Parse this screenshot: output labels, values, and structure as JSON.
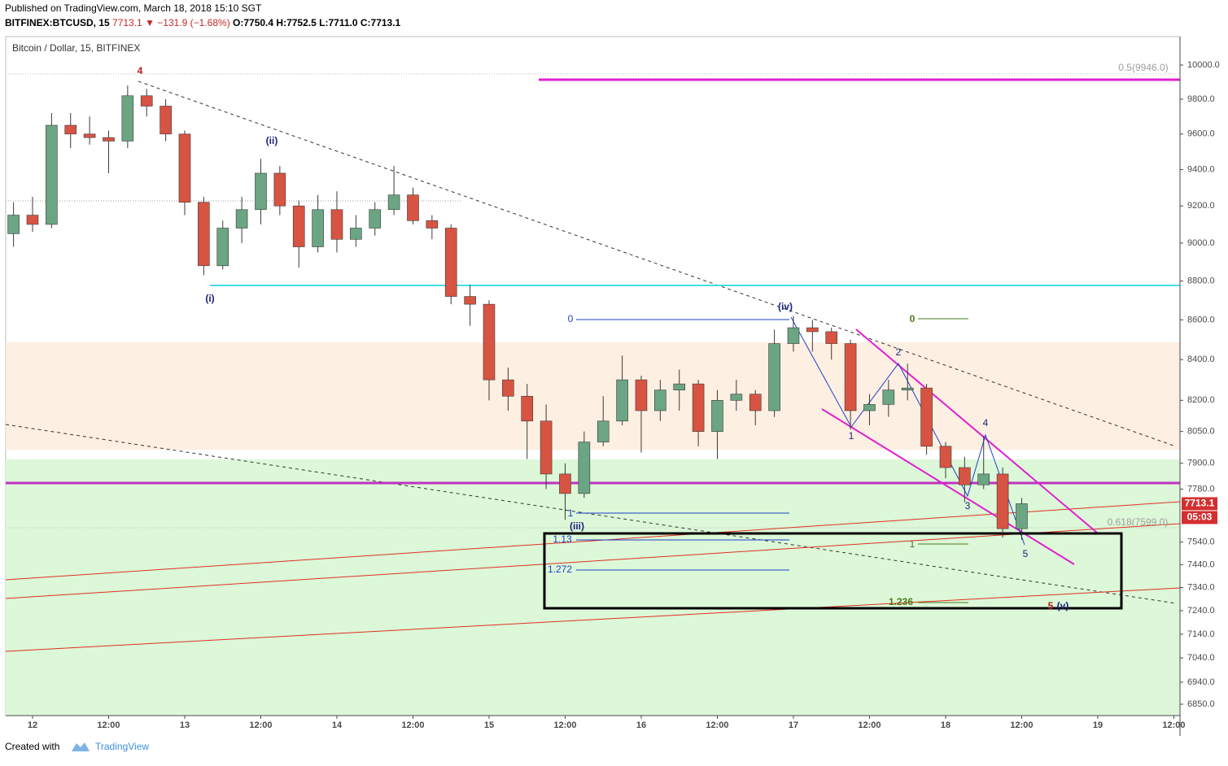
{
  "header": {
    "published": "Published on TradingView.com, March 18, 2018 15:10 SGT",
    "symbol": "BITFINEX:BTCUSD, 15",
    "last": "7713.1",
    "change": "▼ −131.9 (−1.68%)",
    "open": "O:7750.4",
    "high": "H:7752.5",
    "low": "L:7711.0",
    "close": "C:7713.1"
  },
  "footer": {
    "created": "Created with",
    "brand": "TradingView"
  },
  "chart_data": {
    "type": "candlestick",
    "title": "Bitcoin / Dollar, 15, BITFINEX",
    "log_scale": true,
    "grid": false,
    "up_color": "#6ba583",
    "down_color": "#d75442",
    "x": [
      "2018-03-11T21:00",
      "2018-03-12T00:00",
      "2018-03-12T03:00",
      "2018-03-12T06:00",
      "2018-03-12T09:00",
      "2018-03-12T12:00",
      "2018-03-12T15:00",
      "2018-03-12T18:00",
      "2018-03-12T21:00",
      "2018-03-13T00:00",
      "2018-03-13T03:00",
      "2018-03-13T06:00",
      "2018-03-13T09:00",
      "2018-03-13T12:00",
      "2018-03-13T15:00",
      "2018-03-13T18:00",
      "2018-03-13T21:00",
      "2018-03-14T00:00",
      "2018-03-14T03:00",
      "2018-03-14T06:00",
      "2018-03-14T09:00",
      "2018-03-14T12:00",
      "2018-03-14T15:00",
      "2018-03-14T18:00",
      "2018-03-14T21:00",
      "2018-03-15T00:00",
      "2018-03-15T03:00",
      "2018-03-15T06:00",
      "2018-03-15T09:00",
      "2018-03-15T12:00",
      "2018-03-15T15:00",
      "2018-03-15T18:00",
      "2018-03-15T21:00",
      "2018-03-16T00:00",
      "2018-03-16T03:00",
      "2018-03-16T06:00",
      "2018-03-16T09:00",
      "2018-03-16T12:00",
      "2018-03-16T15:00",
      "2018-03-16T18:00",
      "2018-03-16T21:00",
      "2018-03-17T00:00",
      "2018-03-17T03:00",
      "2018-03-17T06:00",
      "2018-03-17T09:00",
      "2018-03-17T12:00",
      "2018-03-17T15:00",
      "2018-03-17T18:00",
      "2018-03-17T21:00",
      "2018-03-18T00:00",
      "2018-03-18T03:00",
      "2018-03-18T06:00",
      "2018-03-18T09:00",
      "2018-03-18T12:00"
    ],
    "open": [
      9050,
      9150,
      9100,
      9650,
      9600,
      9580,
      9560,
      9820,
      9760,
      9600,
      9220,
      8880,
      9080,
      9180,
      9380,
      9200,
      8980,
      9180,
      9020,
      9080,
      9180,
      9260,
      9120,
      9080,
      8720,
      8680,
      8300,
      8220,
      8100,
      7850,
      7760,
      8000,
      8100,
      8300,
      8150,
      8250,
      8280,
      8050,
      8200,
      8230,
      8150,
      8480,
      8560,
      8540,
      8480,
      8150,
      8180,
      8250,
      8260,
      7980,
      7880,
      7800,
      7850,
      7600
    ],
    "high": [
      9220,
      9250,
      9720,
      9720,
      9700,
      9620,
      9880,
      9860,
      9800,
      9620,
      9250,
      9120,
      9250,
      9460,
      9420,
      9230,
      9260,
      9280,
      9150,
      9220,
      9420,
      9300,
      9150,
      9100,
      8780,
      8700,
      8360,
      8280,
      8180,
      7900,
      8050,
      8220,
      8420,
      8320,
      8300,
      8350,
      8300,
      8250,
      8300,
      8250,
      8550,
      8620,
      8600,
      8560,
      8500,
      8230,
      8300,
      8380,
      8280,
      8000,
      7930,
      8030,
      7880,
      7740
    ],
    "low": [
      8980,
      9060,
      9080,
      9520,
      9540,
      9380,
      9520,
      9700,
      9560,
      9150,
      8830,
      8860,
      9000,
      9100,
      9150,
      8870,
      8950,
      8950,
      8980,
      9040,
      9150,
      9100,
      9020,
      8680,
      8570,
      8200,
      8150,
      7920,
      7780,
      7640,
      7740,
      7980,
      8080,
      7950,
      8100,
      8150,
      7980,
      7920,
      8150,
      8080,
      8120,
      8440,
      8440,
      8400,
      8060,
      8080,
      8120,
      8200,
      7940,
      7830,
      7720,
      7780,
      7560,
      7550
    ],
    "close": [
      9150,
      9100,
      9650,
      9600,
      9580,
      9560,
      9820,
      9760,
      9600,
      9220,
      8880,
      9080,
      9180,
      9380,
      9200,
      8980,
      9180,
      9020,
      9080,
      9180,
      9260,
      9120,
      9080,
      8720,
      8680,
      8300,
      8220,
      8100,
      7850,
      7760,
      8000,
      8100,
      8300,
      8150,
      8250,
      8280,
      8050,
      8200,
      8230,
      8150,
      8480,
      8560,
      8540,
      8480,
      8150,
      8180,
      8250,
      8260,
      7980,
      7880,
      7800,
      7850,
      7600,
      7713.1
    ],
    "countdown": "05:03",
    "xlim": [
      "2018-03-11T19:46",
      "2018-03-19T12:58"
    ],
    "xticks": [
      {
        "value": "2018-03-12T00:00",
        "label": "12"
      },
      {
        "value": "2018-03-12T12:00",
        "label": "12:00"
      },
      {
        "value": "2018-03-13T00:00",
        "label": "13"
      },
      {
        "value": "2018-03-13T12:00",
        "label": "12:00"
      },
      {
        "value": "2018-03-14T00:00",
        "label": "14"
      },
      {
        "value": "2018-03-14T12:00",
        "label": "12:00"
      },
      {
        "value": "2018-03-15T00:00",
        "label": "15"
      },
      {
        "value": "2018-03-15T12:00",
        "label": "12:00"
      },
      {
        "value": "2018-03-16T00:00",
        "label": "16"
      },
      {
        "value": "2018-03-16T12:00",
        "label": "12:00"
      },
      {
        "value": "2018-03-17T00:00",
        "label": "17"
      },
      {
        "value": "2018-03-17T12:00",
        "label": "12:00"
      },
      {
        "value": "2018-03-18T00:00",
        "label": "18"
      },
      {
        "value": "2018-03-18T12:00",
        "label": "12:00"
      },
      {
        "value": "2018-03-19T00:00",
        "label": "19"
      },
      {
        "value": "2018-03-19T12:00",
        "label": "12:00"
      }
    ],
    "ylim": [
      6804,
      10170
    ],
    "yticks": [
      {
        "value": 10000,
        "label": "10000.0"
      },
      {
        "value": 9800,
        "label": "9800.0"
      },
      {
        "value": 9600,
        "label": "9600.0"
      },
      {
        "value": 9400,
        "label": "9400.0"
      },
      {
        "value": 9200,
        "label": "9200.0"
      },
      {
        "value": 9000,
        "label": "9000.0"
      },
      {
        "value": 8800,
        "label": "8800.0"
      },
      {
        "value": 8600,
        "label": "8600.0"
      },
      {
        "value": 8400,
        "label": "8400.0"
      },
      {
        "value": 8200,
        "label": "8200.0"
      },
      {
        "value": 8050,
        "label": "8050.0"
      },
      {
        "value": 7900,
        "label": "7900.0"
      },
      {
        "value": 7780,
        "label": "7780.0"
      },
      {
        "value": 7540,
        "label": "7540.0"
      },
      {
        "value": 7440,
        "label": "7440.0"
      },
      {
        "value": 7340,
        "label": "7340.0"
      },
      {
        "value": 7240,
        "label": "7240.0"
      },
      {
        "value": 7140,
        "label": "7140.0"
      },
      {
        "value": 7040,
        "label": "7040.0"
      },
      {
        "value": 6940,
        "label": "6940.0"
      },
      {
        "value": 6850,
        "label": "6850.0"
      }
    ],
    "annotations": [
      {
        "text": "4",
        "color": "#b71c1c"
      },
      {
        "text": "(i)",
        "color": "#1a237e"
      },
      {
        "text": "(ii)",
        "color": "#1a237e"
      },
      {
        "text": "(iii)",
        "color": "#1a237e"
      },
      {
        "text": "(iv)",
        "color": "#1a237e"
      },
      {
        "text": "5",
        "color": "#b71c1c"
      },
      {
        "text": "(v)",
        "color": "#1a237e"
      },
      {
        "text": "1",
        "color": "#1a237e"
      },
      {
        "text": "2",
        "color": "#1a237e"
      },
      {
        "text": "3",
        "color": "#1a237e"
      },
      {
        "text": "4",
        "color": "#1a237e"
      },
      {
        "text": "5",
        "color": "#1a237e"
      },
      {
        "text": "0",
        "color": "#1e40c8"
      },
      {
        "text": "1",
        "color": "#1e40c8"
      },
      {
        "text": "1.13",
        "color": "#1e40c8"
      },
      {
        "text": "1.272",
        "color": "#1e40c8"
      },
      {
        "text": "0",
        "color": "#4a7a1e"
      },
      {
        "text": "1",
        "color": "#4a7a1e"
      },
      {
        "text": "1.236",
        "color": "#4a7a1e"
      },
      {
        "text": "0.5(9946.0)",
        "color": "#9e9e9e"
      },
      {
        "text": "0.618(7599.0)",
        "color": "#9e9e9e"
      }
    ]
  }
}
